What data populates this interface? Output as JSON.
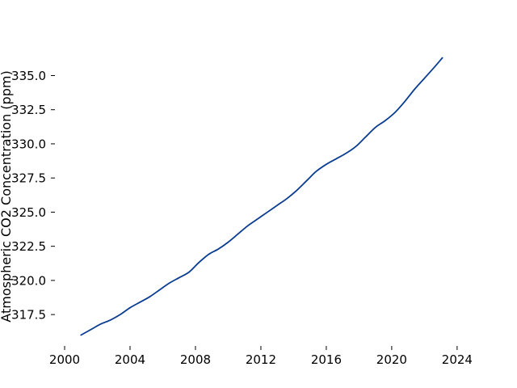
{
  "chart_data": {
    "type": "line",
    "title": "",
    "xlabel": "",
    "ylabel": "Atmospheric CO2 Concentration (ppm)",
    "xlim": [
      2000,
      2024.5
    ],
    "ylim": [
      315.2,
      337.1
    ],
    "grid": false,
    "line_color": "#0a3d91",
    "x_ticks": [
      2000,
      2004,
      2008,
      2012,
      2016,
      2020,
      2024
    ],
    "x_tick_labels": [
      "2000",
      "2004",
      "2008",
      "2012",
      "2016",
      "2020",
      "2024"
    ],
    "y_ticks": [
      317.5,
      320.0,
      322.5,
      325.0,
      327.5,
      330.0,
      332.5,
      335.0
    ],
    "y_tick_labels": [
      "317.5",
      "320.0",
      "322.5",
      "325.0",
      "327.5",
      "330.0",
      "332.5",
      "335.0"
    ],
    "series": [
      {
        "x": [
          2001.0,
          2001.6,
          2002.2,
          2002.8,
          2003.4,
          2004.0,
          2004.6,
          2005.2,
          2005.8,
          2006.4,
          2007.0,
          2007.6,
          2008.2,
          2008.8,
          2009.4,
          2010.0,
          2010.6,
          2011.2,
          2011.8,
          2012.4,
          2013.0,
          2013.6,
          2014.2,
          2014.8,
          2015.4,
          2016.0,
          2016.6,
          2017.2,
          2017.8,
          2018.4,
          2019.0,
          2019.6,
          2020.2,
          2020.8,
          2021.4,
          2022.0,
          2022.6,
          2023.1
        ],
        "values": [
          316.0,
          316.4,
          316.8,
          317.1,
          317.5,
          318.0,
          318.4,
          318.8,
          319.3,
          319.8,
          320.2,
          320.6,
          321.3,
          321.9,
          322.3,
          322.8,
          323.4,
          324.0,
          324.5,
          325.0,
          325.5,
          326.0,
          326.6,
          327.3,
          328.0,
          328.5,
          328.9,
          329.3,
          329.8,
          330.5,
          331.2,
          331.7,
          332.3,
          333.1,
          334.0,
          334.8,
          335.6,
          336.3
        ]
      }
    ]
  }
}
